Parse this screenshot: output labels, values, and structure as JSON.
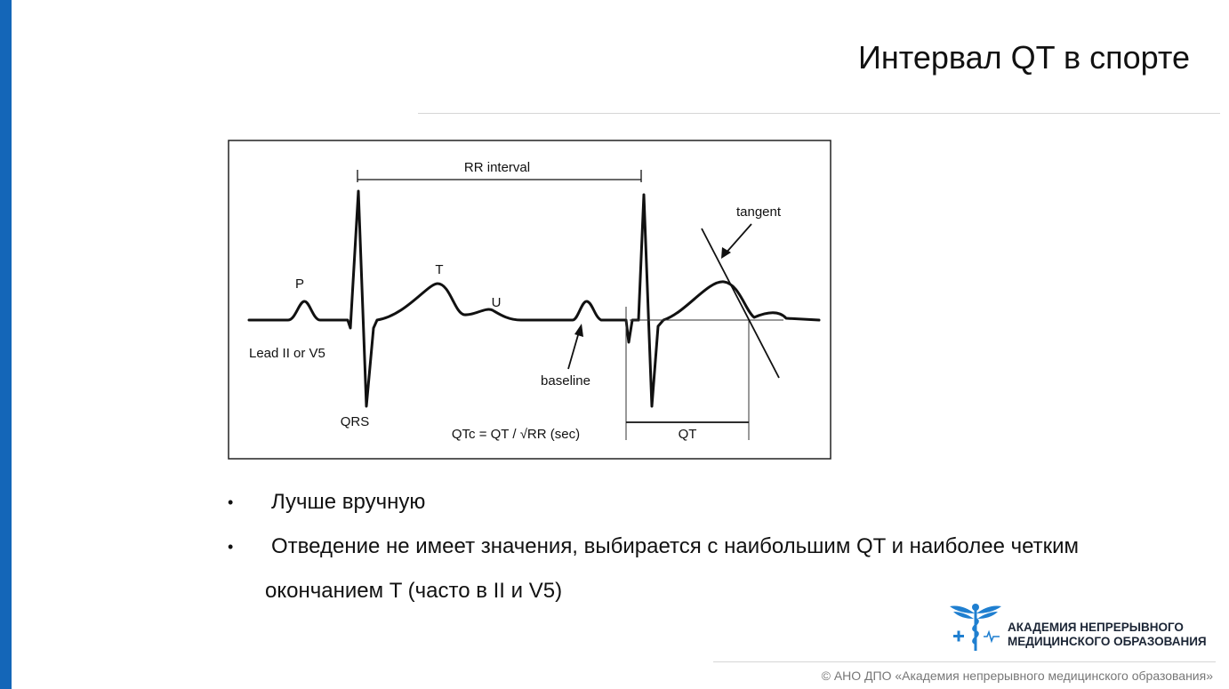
{
  "slide": {
    "title": "Интервал QT в спорте",
    "accent_color": "#1466b8"
  },
  "figure": {
    "labels": {
      "rr_interval": "RR interval",
      "tangent": "tangent",
      "p_wave": "P",
      "t_wave": "T",
      "u_wave": "U",
      "lead": "Lead II or V5",
      "baseline": "baseline",
      "qrs": "QRS",
      "formula": "QTc = QT / √RR (sec)",
      "qt": "QT"
    }
  },
  "bullets": [
    {
      "line1": "Лучше вручную"
    },
    {
      "line1": "Отведение не имеет значения, выбирается с наибольшим QT и наиболее четким",
      "line2": "окончанием T (часто в II и V5)"
    }
  ],
  "logo": {
    "line1": "АКАДЕМИЯ НЕПРЕРЫВНОГО",
    "line2": "МЕДИЦИНСКОГО ОБРАЗОВАНИЯ",
    "icon": "caduceus-icon"
  },
  "footer": {
    "copyright": "© АНО ДПО «Академия непрерывного медицинского образования»"
  }
}
